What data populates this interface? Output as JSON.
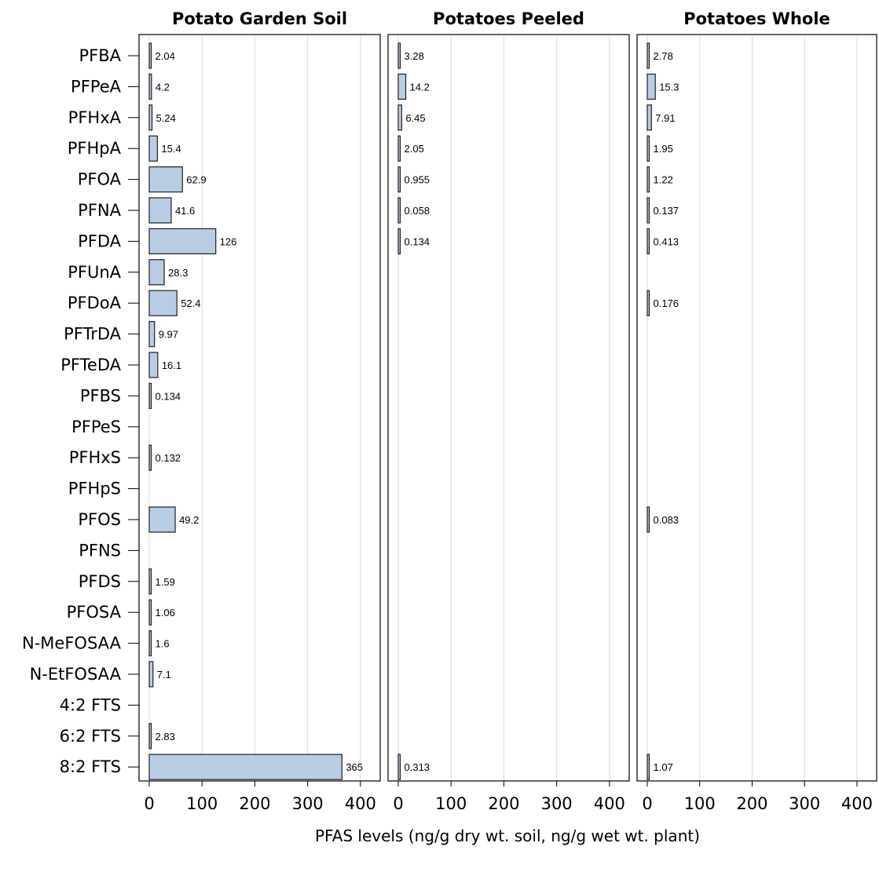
{
  "chart_data": {
    "type": "bar",
    "orientation": "horizontal",
    "xlabel": "PFAS levels (ng/g dry wt. soil, ng/g wet wt. plant)",
    "xlim": [
      0,
      430
    ],
    "xticks": [
      0,
      100,
      200,
      300,
      400
    ],
    "grid": true,
    "categories": [
      "PFBA",
      "PFPeA",
      "PFHxA",
      "PFHpA",
      "PFOA",
      "PFNA",
      "PFDA",
      "PFUnA",
      "PFDoA",
      "PFTrDA",
      "PFTeDA",
      "PFBS",
      "PFPeS",
      "PFHxS",
      "PFHpS",
      "PFOS",
      "PFNS",
      "PFDS",
      "PFOSA",
      "N-MeFOSAA",
      "N-EtFOSAA",
      "4:2 FTS",
      "6:2 FTS",
      "8:2 FTS"
    ],
    "panels": [
      {
        "title": "Potato Garden Soil",
        "values": [
          2.04,
          4.2,
          5.24,
          15.4,
          62.9,
          41.6,
          126,
          28.3,
          52.4,
          9.97,
          16.1,
          0.134,
          null,
          0.132,
          null,
          49.2,
          null,
          1.59,
          1.06,
          1.6,
          7.1,
          null,
          2.83,
          365
        ],
        "labels": [
          "2.04",
          "4.2",
          "5.24",
          "15.4",
          "62.9",
          "41.6",
          "126",
          "28.3",
          "52.4",
          "9.97",
          "16.1",
          "0.134",
          "",
          "0.132",
          "",
          "49.2",
          "",
          "1.59",
          "1.06",
          "1.6",
          "7.1",
          "",
          "2.83",
          "365"
        ]
      },
      {
        "title": "Potatoes Peeled",
        "values": [
          3.28,
          14.2,
          6.45,
          2.05,
          0.955,
          0.058,
          0.134,
          null,
          null,
          null,
          null,
          null,
          null,
          null,
          null,
          null,
          null,
          null,
          null,
          null,
          null,
          null,
          null,
          0.313
        ],
        "labels": [
          "3.28",
          "14.2",
          "6.45",
          "2.05",
          "0.955",
          "0.058",
          "0.134",
          "",
          "",
          "",
          "",
          "",
          "",
          "",
          "",
          "",
          "",
          "",
          "",
          "",
          "",
          "",
          "",
          "0.313"
        ]
      },
      {
        "title": "Potatoes Whole",
        "values": [
          2.78,
          15.3,
          7.91,
          1.95,
          1.22,
          0.137,
          0.413,
          null,
          0.176,
          null,
          null,
          null,
          null,
          null,
          null,
          0.083,
          null,
          null,
          null,
          null,
          null,
          null,
          null,
          1.07
        ],
        "labels": [
          "2.78",
          "15.3",
          "7.91",
          "1.95",
          "1.22",
          "0.137",
          "0.413",
          "",
          "0.176",
          "",
          "",
          "",
          "",
          "",
          "",
          "0.083",
          "",
          "",
          "",
          "",
          "",
          "",
          "",
          "1.07"
        ]
      }
    ],
    "colors": {
      "bar_fill": "#b8cce4",
      "bar_stroke": "#1f1f1f",
      "grid": "#d9d9d9",
      "frame": "#000000"
    }
  }
}
